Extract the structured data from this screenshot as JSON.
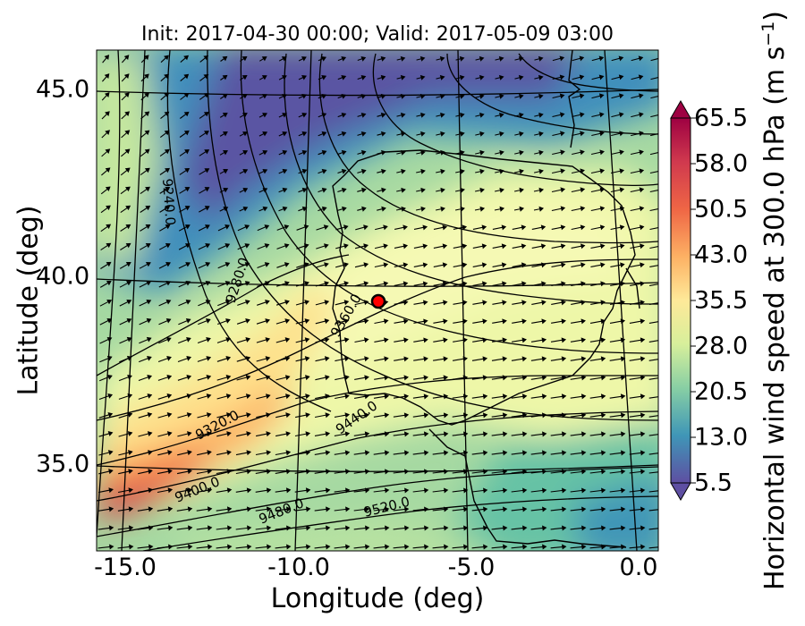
{
  "title": "Init: 2017-04-30 00:00; Valid: 2017-05-09 03:00",
  "x_axis": {
    "label": "Longitude (deg)",
    "ticks": [
      "-15.0",
      "-10.0",
      "-5.0",
      "0.0"
    ]
  },
  "y_axis": {
    "label": "Latitude (deg)",
    "ticks": [
      "45.0",
      "40.0",
      "35.0"
    ]
  },
  "colorbar": {
    "label": "Horizontal wind speed at 300.0 hPa",
    "unit_prefix": "(m s",
    "unit_exp": "−1",
    "unit_suffix": ")",
    "ticks": [
      "65.5",
      "58.0",
      "50.5",
      "43.0",
      "35.5",
      "28.0",
      "20.5",
      "13.0",
      "5.5"
    ],
    "range": [
      5.5,
      65.5
    ],
    "colormap": [
      "#5e4fa2",
      "#3f96b7",
      "#88cfa4",
      "#d7ef9b",
      "#fee999",
      "#fdb164",
      "#ef6645",
      "#d0394e",
      "#9e0142"
    ]
  },
  "contours": {
    "labels": [
      "9240.0",
      "9280.0",
      "9360.0",
      "9320.0",
      "9440.0",
      "9400.0",
      "9480.0",
      "9520.0"
    ]
  },
  "marker": {
    "color": "#ff0000",
    "lon": -7.8,
    "lat": 39.4
  },
  "map_extent": {
    "lon": [
      -16,
      0
    ],
    "lat": [
      33,
      46
    ]
  }
}
